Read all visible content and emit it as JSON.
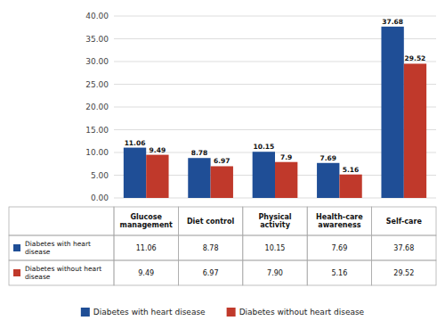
{
  "chart_data": {
    "type": "bar",
    "categories": [
      "Glucose management",
      "Diet control",
      "Physical activity",
      "Health-care awareness",
      "Self-care"
    ],
    "series": [
      {
        "name": "Diabetes with heart disease",
        "color": "#1F4E96",
        "values": [
          11.06,
          8.78,
          10.15,
          7.69,
          37.68
        ],
        "table_values": [
          "11.06",
          "8.78",
          "10.15",
          "7.69",
          "37.68"
        ]
      },
      {
        "name": "Diabetes without heart disease",
        "color": "#C0392B",
        "values": [
          9.49,
          6.97,
          7.9,
          5.16,
          29.52
        ],
        "table_values": [
          "9.49",
          "6.97",
          "7.90",
          "5.16",
          "29.52"
        ]
      }
    ],
    "ylim": [
      0,
      40
    ],
    "yticks": [
      {
        "value": 0,
        "label": "0.00"
      },
      {
        "value": 5,
        "label": "5.00"
      },
      {
        "value": 10,
        "label": "10.00"
      },
      {
        "value": 15,
        "label": "15.00"
      },
      {
        "value": 20,
        "label": "20.00"
      },
      {
        "value": 25,
        "label": "25.00"
      },
      {
        "value": 30,
        "label": "30.00"
      },
      {
        "value": 35,
        "label": "35.00"
      },
      {
        "value": 40,
        "label": "40.00"
      }
    ],
    "grid": true,
    "data_labels": true,
    "legend": "bottom"
  }
}
